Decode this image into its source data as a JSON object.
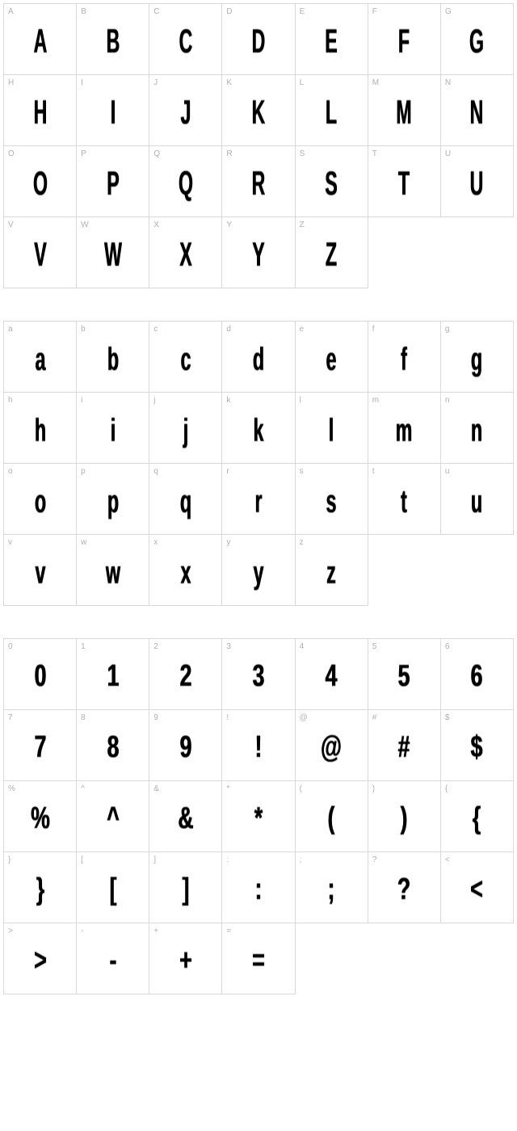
{
  "cell_border_color": "#d9d9d9",
  "label_color": "#b0b0b0",
  "glyph_color": "#000000",
  "background_color": "#ffffff",
  "label_fontsize": 10,
  "glyph_fontsize": 42,
  "columns": 7,
  "sections": [
    {
      "name": "uppercase",
      "cells": [
        {
          "label": "A",
          "glyph": "A"
        },
        {
          "label": "B",
          "glyph": "B"
        },
        {
          "label": "C",
          "glyph": "C"
        },
        {
          "label": "D",
          "glyph": "D"
        },
        {
          "label": "E",
          "glyph": "E"
        },
        {
          "label": "F",
          "glyph": "F"
        },
        {
          "label": "G",
          "glyph": "G"
        },
        {
          "label": "H",
          "glyph": "H"
        },
        {
          "label": "I",
          "glyph": "I"
        },
        {
          "label": "J",
          "glyph": "J"
        },
        {
          "label": "K",
          "glyph": "K"
        },
        {
          "label": "L",
          "glyph": "L"
        },
        {
          "label": "M",
          "glyph": "M"
        },
        {
          "label": "N",
          "glyph": "N"
        },
        {
          "label": "O",
          "glyph": "O"
        },
        {
          "label": "P",
          "glyph": "P"
        },
        {
          "label": "Q",
          "glyph": "Q"
        },
        {
          "label": "R",
          "glyph": "R"
        },
        {
          "label": "S",
          "glyph": "S"
        },
        {
          "label": "T",
          "glyph": "T"
        },
        {
          "label": "U",
          "glyph": "U"
        },
        {
          "label": "V",
          "glyph": "V"
        },
        {
          "label": "W",
          "glyph": "W"
        },
        {
          "label": "X",
          "glyph": "X"
        },
        {
          "label": "Y",
          "glyph": "Y"
        },
        {
          "label": "Z",
          "glyph": "Z"
        }
      ]
    },
    {
      "name": "lowercase",
      "cells": [
        {
          "label": "a",
          "glyph": "a"
        },
        {
          "label": "b",
          "glyph": "b"
        },
        {
          "label": "c",
          "glyph": "c"
        },
        {
          "label": "d",
          "glyph": "d"
        },
        {
          "label": "e",
          "glyph": "e"
        },
        {
          "label": "f",
          "glyph": "f"
        },
        {
          "label": "g",
          "glyph": "g"
        },
        {
          "label": "h",
          "glyph": "h"
        },
        {
          "label": "i",
          "glyph": "i"
        },
        {
          "label": "j",
          "glyph": "j"
        },
        {
          "label": "k",
          "glyph": "k"
        },
        {
          "label": "l",
          "glyph": "l"
        },
        {
          "label": "m",
          "glyph": "m"
        },
        {
          "label": "n",
          "glyph": "n"
        },
        {
          "label": "o",
          "glyph": "o"
        },
        {
          "label": "p",
          "glyph": "p"
        },
        {
          "label": "q",
          "glyph": "q"
        },
        {
          "label": "r",
          "glyph": "r"
        },
        {
          "label": "s",
          "glyph": "s"
        },
        {
          "label": "t",
          "glyph": "t"
        },
        {
          "label": "u",
          "glyph": "u"
        },
        {
          "label": "v",
          "glyph": "v"
        },
        {
          "label": "w",
          "glyph": "w"
        },
        {
          "label": "x",
          "glyph": "x"
        },
        {
          "label": "y",
          "glyph": "y"
        },
        {
          "label": "z",
          "glyph": "z"
        }
      ]
    },
    {
      "name": "symbols",
      "cells": [
        {
          "label": "0",
          "glyph": "0"
        },
        {
          "label": "1",
          "glyph": "1"
        },
        {
          "label": "2",
          "glyph": "2"
        },
        {
          "label": "3",
          "glyph": "3"
        },
        {
          "label": "4",
          "glyph": "4"
        },
        {
          "label": "5",
          "glyph": "5"
        },
        {
          "label": "6",
          "glyph": "6"
        },
        {
          "label": "7",
          "glyph": "7"
        },
        {
          "label": "8",
          "glyph": "8"
        },
        {
          "label": "9",
          "glyph": "9"
        },
        {
          "label": "!",
          "glyph": "!"
        },
        {
          "label": "@",
          "glyph": "@"
        },
        {
          "label": "#",
          "glyph": "#"
        },
        {
          "label": "$",
          "glyph": "$"
        },
        {
          "label": "%",
          "glyph": "%"
        },
        {
          "label": "^",
          "glyph": "^"
        },
        {
          "label": "&",
          "glyph": "&"
        },
        {
          "label": "*",
          "glyph": "*"
        },
        {
          "label": "(",
          "glyph": "("
        },
        {
          "label": ")",
          "glyph": ")"
        },
        {
          "label": "{",
          "glyph": "{"
        },
        {
          "label": "}",
          "glyph": "}"
        },
        {
          "label": "[",
          "glyph": "["
        },
        {
          "label": "]",
          "glyph": "]"
        },
        {
          "label": ":",
          "glyph": ":"
        },
        {
          "label": ";",
          "glyph": ";"
        },
        {
          "label": "?",
          "glyph": "?"
        },
        {
          "label": "<",
          "glyph": "<"
        },
        {
          "label": ">",
          "glyph": ">"
        },
        {
          "label": "-",
          "glyph": "-"
        },
        {
          "label": "+",
          "glyph": "+"
        },
        {
          "label": "=",
          "glyph": "="
        }
      ]
    }
  ]
}
